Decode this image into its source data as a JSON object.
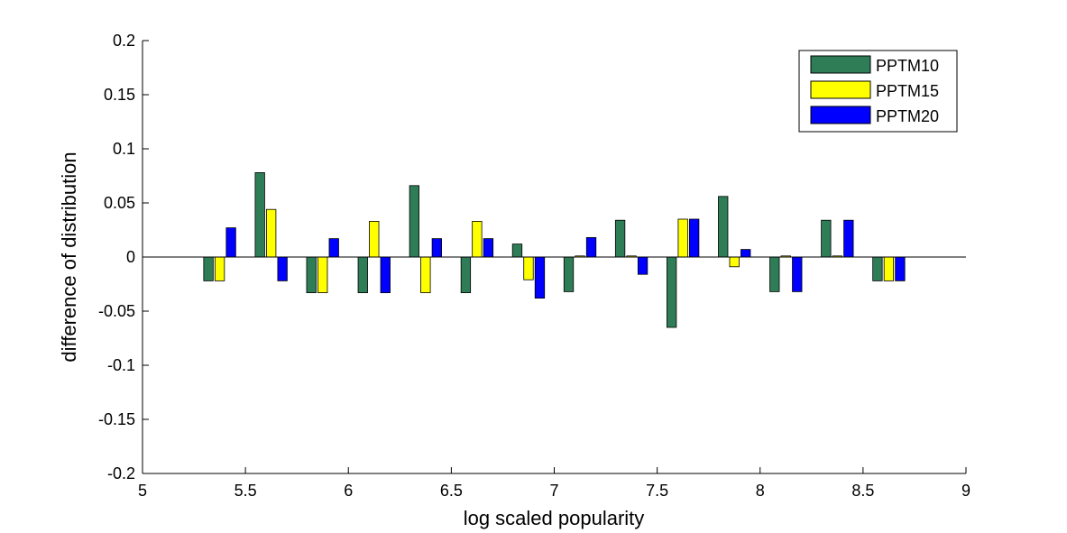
{
  "colors": {
    "PPTM10": "#2e7d57",
    "PPTM15": "#ffff00",
    "PPTM20": "#0000ff",
    "axis": "#000000",
    "background": "#ffffff"
  },
  "chart_data": {
    "type": "bar",
    "title": "",
    "xlabel": "log scaled popularity",
    "ylabel": "difference of distribution",
    "xlim": [
      5,
      9
    ],
    "ylim": [
      -0.2,
      0.2
    ],
    "x_ticks": [
      "5",
      "5.5",
      "6",
      "6.5",
      "7",
      "7.5",
      "8",
      "8.5",
      "9"
    ],
    "y_ticks": [
      "-0.2",
      "-0.15",
      "-0.1",
      "-0.05",
      "0",
      "0.05",
      "0.1",
      "0.15",
      "0.2"
    ],
    "grid": false,
    "legend_position": "top-right",
    "x": [
      5.375,
      5.625,
      5.875,
      6.125,
      6.375,
      6.625,
      6.875,
      7.125,
      7.375,
      7.625,
      7.875,
      8.125,
      8.375,
      8.625
    ],
    "series": [
      {
        "name": "PPTM10",
        "values": [
          -0.022,
          0.078,
          -0.033,
          -0.033,
          0.066,
          -0.033,
          0.012,
          -0.032,
          0.034,
          -0.065,
          0.056,
          -0.032,
          0.034,
          -0.022
        ]
      },
      {
        "name": "PPTM15",
        "values": [
          -0.022,
          0.044,
          -0.033,
          0.033,
          -0.033,
          0.033,
          -0.021,
          0.001,
          0.001,
          0.035,
          -0.009,
          0.001,
          0.001,
          -0.022
        ]
      },
      {
        "name": "PPTM20",
        "values": [
          0.027,
          -0.022,
          0.017,
          -0.033,
          0.017,
          0.017,
          -0.038,
          0.018,
          -0.016,
          0.035,
          0.007,
          -0.032,
          0.034,
          -0.022
        ]
      }
    ]
  }
}
